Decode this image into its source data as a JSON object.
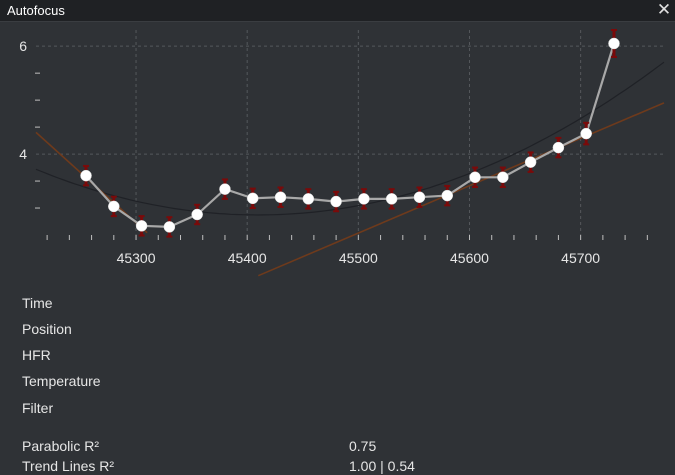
{
  "window": {
    "title": "Autofocus",
    "close_glyph": "✕"
  },
  "chart_data": {
    "type": "line",
    "x": [
      45255,
      45280,
      45305,
      45330,
      45355,
      45380,
      45405,
      45430,
      45455,
      45480,
      45505,
      45530,
      45555,
      45580,
      45605,
      45630,
      45655,
      45680,
      45705,
      45730
    ],
    "series": [
      {
        "values": [
          3.6,
          3.03,
          2.67,
          2.65,
          2.88,
          3.35,
          3.18,
          3.2,
          3.17,
          3.12,
          3.17,
          3.17,
          3.2,
          3.23,
          3.57,
          3.57,
          3.85,
          4.12,
          4.38,
          6.05
        ],
        "errors": [
          0.18,
          0.18,
          0.18,
          0.18,
          0.18,
          0.18,
          0.18,
          0.18,
          0.18,
          0.18,
          0.18,
          0.18,
          0.18,
          0.18,
          0.18,
          0.18,
          0.18,
          0.18,
          0.2,
          0.25
        ]
      }
    ],
    "xlim": [
      45210,
      45775
    ],
    "ylim": [
      2.5,
      6.3
    ],
    "x_ticks": [
      45300,
      45400,
      45500,
      45600,
      45700
    ],
    "y_ticks": [
      4,
      6
    ],
    "grid": true,
    "colors": {
      "line": "#a8a8a8",
      "marker": "#ffffff",
      "error": "#7a0a0a",
      "trend": "#6e3a1c",
      "fit": "#1f2126",
      "grid": "#55585c"
    }
  },
  "info": {
    "labels": [
      "Time",
      "Position",
      "HFR",
      "Temperature",
      "Filter"
    ],
    "parabolic_label": "Parabolic R²",
    "parabolic_value": "0.75",
    "trend_label": "Trend Lines R²",
    "trend_value": "1.00 | 0.54"
  }
}
